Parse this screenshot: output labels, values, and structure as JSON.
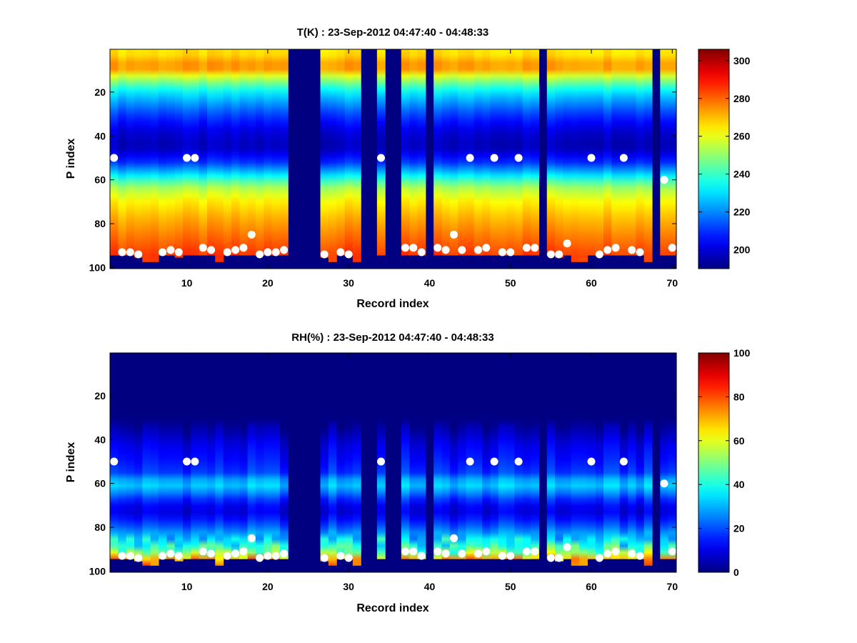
{
  "chart_data": [
    {
      "type": "heatmap",
      "title": "T(K) : 23-Sep-2012 04:47:40 - 04:48:33",
      "xlabel": "Record index",
      "ylabel": "P index",
      "xlim": [
        0.5,
        70.5
      ],
      "ylim": [
        100.5,
        0.5
      ],
      "xticks": [
        10,
        20,
        30,
        40,
        50,
        60,
        70
      ],
      "yticks": [
        20,
        40,
        60,
        80,
        100
      ],
      "colorbar": {
        "clim": [
          190,
          306
        ],
        "ticks": [
          200,
          220,
          240,
          260,
          280,
          300
        ],
        "colormap": "jet",
        "placement": "right"
      },
      "missing_records": [
        23,
        24,
        25,
        26,
        32,
        33,
        35,
        36,
        40,
        54,
        68
      ],
      "profile_shape": {
        "p_index": [
          1,
          5,
          9,
          12,
          20,
          30,
          38,
          45,
          52,
          58,
          63,
          70,
          78,
          85,
          90,
          93,
          100
        ],
        "value": [
          265,
          268,
          279,
          262,
          232,
          212,
          200,
          196,
          210,
          232,
          252,
          264,
          272,
          278,
          282,
          285,
          285
        ]
      },
      "bottom_p_index": [
        94,
        94,
        94,
        95,
        97,
        97,
        94,
        94,
        95,
        94,
        94,
        94,
        94,
        97,
        94,
        94,
        94,
        94,
        94,
        94,
        94,
        94,
        0,
        0,
        0,
        0,
        95,
        97,
        94,
        94,
        97,
        0,
        0,
        94,
        0,
        0,
        94,
        94,
        94,
        0,
        94,
        94,
        94,
        94,
        94,
        94,
        94,
        94,
        94,
        94,
        94,
        94,
        94,
        0,
        94,
        95,
        94,
        97,
        97,
        94,
        94,
        94,
        94,
        94,
        94,
        94,
        97,
        0,
        94,
        94
      ],
      "markers": {
        "color": "#ffffff",
        "surface_points": [
          [
            1,
            50
          ],
          [
            2,
            93
          ],
          [
            3,
            93
          ],
          [
            4,
            94
          ],
          [
            7,
            93
          ],
          [
            8,
            92
          ],
          [
            9,
            93
          ],
          [
            10,
            50
          ],
          [
            11,
            50
          ],
          [
            12,
            91
          ],
          [
            13,
            92
          ],
          [
            15,
            93
          ],
          [
            16,
            92
          ],
          [
            17,
            91
          ],
          [
            18,
            85
          ],
          [
            19,
            94
          ],
          [
            20,
            93
          ],
          [
            21,
            93
          ],
          [
            22,
            92
          ],
          [
            27,
            94
          ],
          [
            29,
            93
          ],
          [
            30,
            94
          ],
          [
            34,
            50
          ],
          [
            37,
            91
          ],
          [
            38,
            91
          ],
          [
            39,
            93
          ],
          [
            41,
            91
          ],
          [
            42,
            92
          ],
          [
            43,
            85
          ],
          [
            44,
            92
          ],
          [
            45,
            50
          ],
          [
            46,
            92
          ],
          [
            47,
            91
          ],
          [
            48,
            50
          ],
          [
            49,
            93
          ],
          [
            50,
            93
          ],
          [
            51,
            50
          ],
          [
            52,
            91
          ],
          [
            53,
            91
          ],
          [
            55,
            94
          ],
          [
            56,
            94
          ],
          [
            57,
            89
          ],
          [
            60,
            50
          ],
          [
            61,
            94
          ],
          [
            62,
            92
          ],
          [
            63,
            91
          ],
          [
            64,
            50
          ],
          [
            65,
            92
          ],
          [
            66,
            93
          ],
          [
            69,
            60
          ],
          [
            70,
            91
          ]
        ]
      }
    },
    {
      "type": "heatmap",
      "title": "RH(%) : 23-Sep-2012 04:47:40 - 04:48:33",
      "xlabel": "Record index",
      "ylabel": "P index",
      "xlim": [
        0.5,
        70.5
      ],
      "ylim": [
        100.5,
        0.5
      ],
      "xticks": [
        10,
        20,
        30,
        40,
        50,
        60,
        70
      ],
      "yticks": [
        20,
        40,
        60,
        80,
        100
      ],
      "colorbar": {
        "clim": [
          0,
          100
        ],
        "ticks": [
          0,
          20,
          40,
          60,
          80,
          100
        ],
        "colormap": "jet",
        "placement": "right"
      },
      "missing_records": [
        23,
        24,
        25,
        26,
        32,
        33,
        35,
        36,
        40,
        54,
        68
      ],
      "profile_shape": {
        "p_index": [
          1,
          30,
          36,
          42,
          50,
          55,
          58,
          61,
          64,
          68,
          72,
          76,
          80,
          84,
          88,
          91,
          93,
          95,
          100
        ],
        "value": [
          0,
          0,
          4,
          10,
          14,
          18,
          28,
          32,
          25,
          14,
          8,
          14,
          22,
          32,
          40,
          50,
          62,
          75,
          85
        ]
      },
      "bottom_p_index": [
        94,
        94,
        94,
        95,
        97,
        97,
        94,
        94,
        95,
        94,
        94,
        94,
        94,
        97,
        94,
        94,
        94,
        94,
        94,
        94,
        94,
        94,
        0,
        0,
        0,
        0,
        95,
        97,
        94,
        94,
        97,
        0,
        0,
        94,
        0,
        0,
        94,
        94,
        94,
        0,
        94,
        94,
        94,
        94,
        94,
        94,
        94,
        94,
        94,
        94,
        94,
        94,
        94,
        0,
        94,
        95,
        94,
        97,
        97,
        94,
        94,
        94,
        94,
        94,
        94,
        94,
        97,
        0,
        94,
        94
      ],
      "markers": {
        "color": "#ffffff",
        "surface_points": [
          [
            1,
            50
          ],
          [
            2,
            93
          ],
          [
            3,
            93
          ],
          [
            4,
            94
          ],
          [
            7,
            93
          ],
          [
            8,
            92
          ],
          [
            9,
            93
          ],
          [
            10,
            50
          ],
          [
            11,
            50
          ],
          [
            12,
            91
          ],
          [
            13,
            92
          ],
          [
            15,
            93
          ],
          [
            16,
            92
          ],
          [
            17,
            91
          ],
          [
            18,
            85
          ],
          [
            19,
            94
          ],
          [
            20,
            93
          ],
          [
            21,
            93
          ],
          [
            22,
            92
          ],
          [
            27,
            94
          ],
          [
            29,
            93
          ],
          [
            30,
            94
          ],
          [
            34,
            50
          ],
          [
            37,
            91
          ],
          [
            38,
            91
          ],
          [
            39,
            93
          ],
          [
            41,
            91
          ],
          [
            42,
            92
          ],
          [
            43,
            85
          ],
          [
            44,
            92
          ],
          [
            45,
            50
          ],
          [
            46,
            92
          ],
          [
            47,
            91
          ],
          [
            48,
            50
          ],
          [
            49,
            93
          ],
          [
            50,
            93
          ],
          [
            51,
            50
          ],
          [
            52,
            91
          ],
          [
            53,
            91
          ],
          [
            55,
            94
          ],
          [
            56,
            94
          ],
          [
            57,
            89
          ],
          [
            60,
            50
          ],
          [
            61,
            94
          ],
          [
            62,
            92
          ],
          [
            63,
            91
          ],
          [
            64,
            50
          ],
          [
            65,
            92
          ],
          [
            66,
            93
          ],
          [
            69,
            60
          ],
          [
            70,
            91
          ]
        ]
      }
    }
  ]
}
